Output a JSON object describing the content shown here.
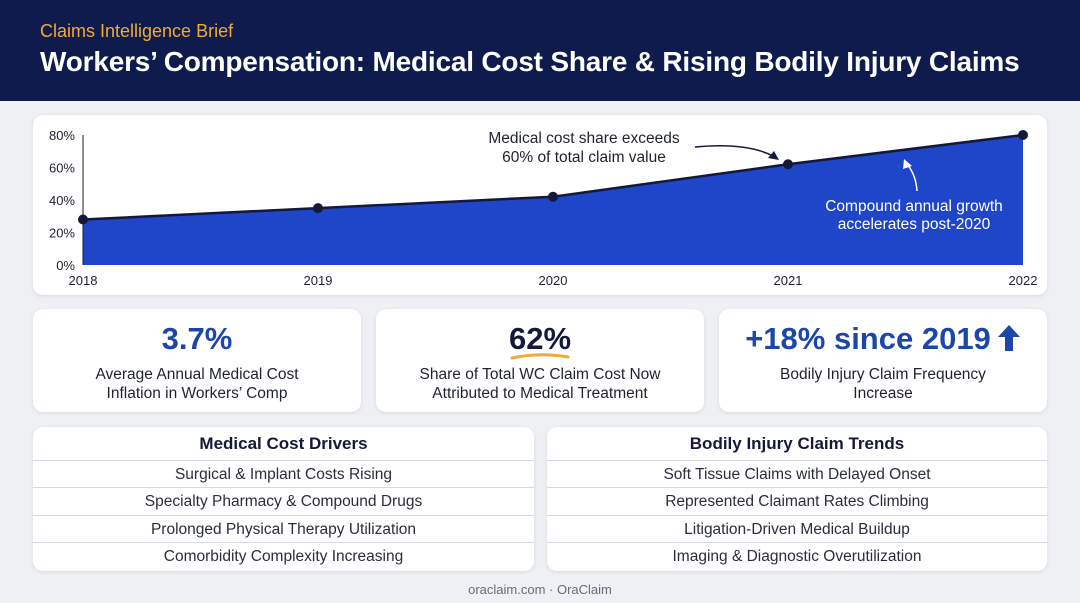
{
  "header": {
    "kicker": "Claims Intelligence Brief",
    "title": "Workers’ Compensation: Medical Cost Share & Rising Bodily Injury Claims"
  },
  "colors": {
    "header_bg": "#0f1b4d",
    "kicker": "#f2a93b",
    "area_fill": "#1f45c8",
    "line": "#14193a",
    "accent_blue": "#1c47a8",
    "underline": "#f2a93b"
  },
  "chart_data": {
    "type": "area",
    "categories": [
      "2018",
      "2019",
      "2020",
      "2021",
      "2022"
    ],
    "values": [
      28,
      35,
      42,
      62,
      80
    ],
    "ylim": [
      0,
      80
    ],
    "yticks": [
      "0%",
      "20%",
      "40%",
      "60%",
      "80%"
    ],
    "xlabel": "",
    "ylabel": "",
    "grid": false,
    "annotations": [
      {
        "text": [
          "Medical cost share exceeds",
          "60% of total claim value"
        ],
        "points_to": "2021"
      },
      {
        "text": [
          "Compound annual growth",
          "accelerates post-2020"
        ],
        "points_to": "2021-2022"
      }
    ]
  },
  "kpis": [
    {
      "value": "3.7%",
      "desc": [
        "Average Annual Medical Cost",
        "Inflation in Workers’ Comp"
      ]
    },
    {
      "value": "62%",
      "desc": [
        "Share of Total WC Claim Cost Now",
        "Attributed to Medical Treatment"
      ]
    },
    {
      "value": "+18% since 2019",
      "icon": "arrow-up-icon",
      "desc": [
        "Bodily Injury Claim Frequency",
        "Increase"
      ]
    }
  ],
  "lists": [
    {
      "title": "Medical Cost Drivers",
      "items": [
        "Surgical & Implant Costs Rising",
        "Specialty Pharmacy & Compound Drugs",
        "Prolonged Physical Therapy Utilization",
        "Comorbidity Complexity Increasing"
      ]
    },
    {
      "title": "Bodily Injury Claim Trends",
      "items": [
        "Soft Tissue Claims with Delayed Onset",
        "Represented Claimant Rates Climbing",
        "Litigation-Driven Medical Buildup",
        "Imaging & Diagnostic Overutilization"
      ]
    }
  ],
  "footer": "oraclaim.com · OraClaim"
}
